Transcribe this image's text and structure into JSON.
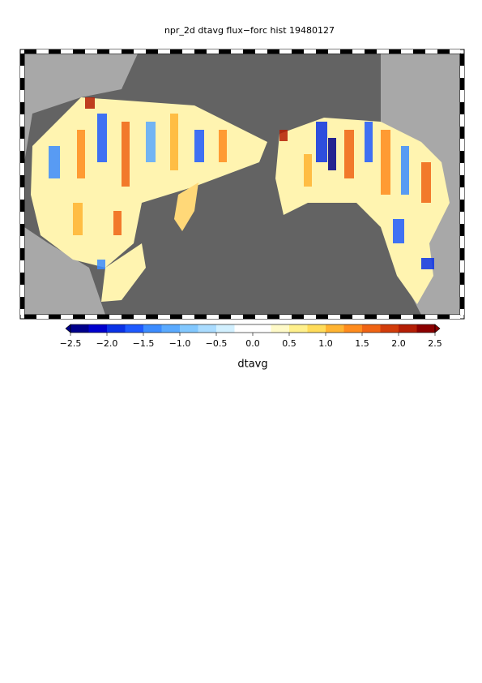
{
  "title": "npr_2d dtavg flux−forc hist 19480127",
  "colorbar": {
    "label": "dtavg",
    "lim": [
      -2.5,
      2.5
    ],
    "ticks": [
      {
        "value": -2.5,
        "label": "−2.5"
      },
      {
        "value": -2.0,
        "label": "−2.0"
      },
      {
        "value": -1.5,
        "label": "−1.5"
      },
      {
        "value": -1.0,
        "label": "−1.0"
      },
      {
        "value": -0.5,
        "label": "−0.5"
      },
      {
        "value": 0,
        "label": "0.0"
      },
      0.5,
      {
        "value": 1,
        "label": "1.0"
      },
      1.5,
      {
        "value": 2,
        "label": "2.0"
      },
      2.5
    ],
    "colors": [
      "#00008b",
      "#0000cd",
      "#0a32e6",
      "#1e5aff",
      "#3c8cff",
      "#5aaaff",
      "#82c8ff",
      "#aadcff",
      "#d2f0ff",
      "#ffffff",
      "#ffffff",
      "#fffac8",
      "#fff08c",
      "#ffdc5a",
      "#ffb432",
      "#ff8c1e",
      "#f06414",
      "#d23c0a",
      "#b41e05",
      "#8b0000"
    ]
  }
}
